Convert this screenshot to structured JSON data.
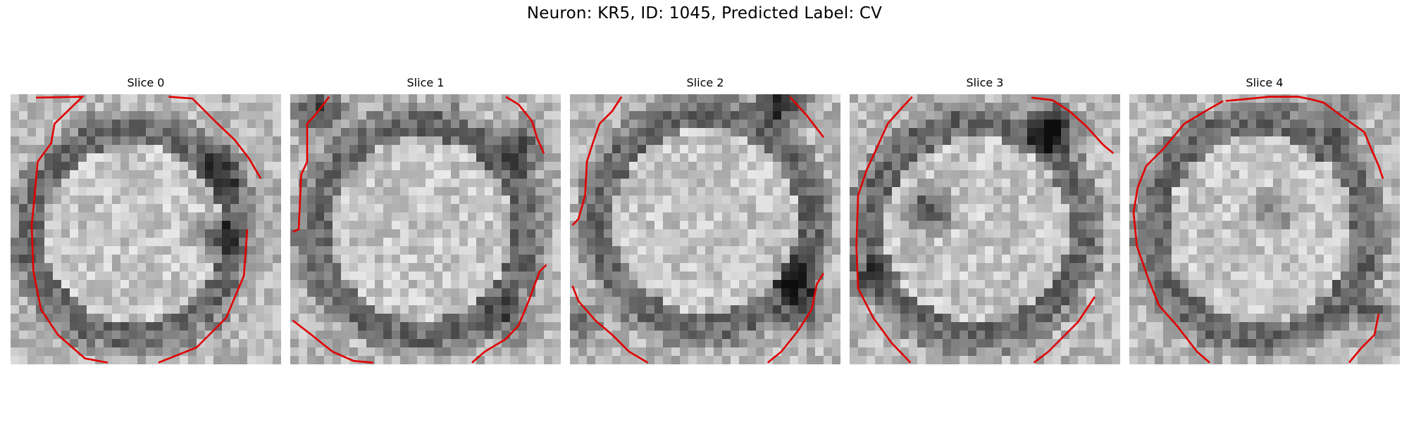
{
  "figure": {
    "title": "Neuron: KR5, ID: 1045, Predicted Label: CV",
    "contour_color": "#e00000",
    "panels": [
      {
        "title": "Slice 0"
      },
      {
        "title": "Slice 1"
      },
      {
        "title": "Slice 2"
      },
      {
        "title": "Slice 3"
      },
      {
        "title": "Slice 4"
      }
    ]
  }
}
